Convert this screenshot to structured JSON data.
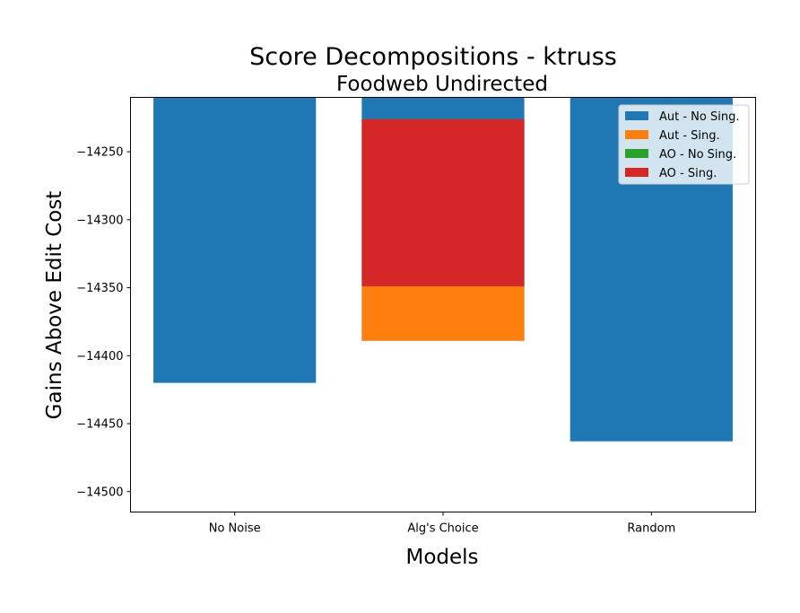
{
  "chart_data": {
    "type": "bar",
    "stacked": true,
    "title": "Score Decompositions - ktruss",
    "subtitle": "Foodweb Undirected",
    "xlabel": "Models",
    "ylabel": "Gains Above Edit Cost",
    "categories": [
      "No Noise",
      "Alg's Choice",
      "Random"
    ],
    "ylim": [
      -14515,
      -14210
    ],
    "yticks": [
      -14250,
      -14300,
      -14350,
      -14400,
      -14450,
      -14500
    ],
    "ytick_labels": [
      "−14250",
      "−14300",
      "−14350",
      "−14400",
      "−14450",
      "−14500"
    ],
    "legend_position": "top-right",
    "series": [
      {
        "name": "Aut - No Sing.",
        "color": "#1f77b4",
        "bottoms": [
          0,
          0,
          0
        ],
        "tops": [
          -14420,
          -14389,
          -14463
        ]
      },
      {
        "name": "Aut - Sing.",
        "color": "#ff7f0e",
        "bottoms": [
          -14420,
          -14389,
          -14463
        ],
        "tops": [
          -14420,
          -14349,
          -14463
        ]
      },
      {
        "name": "AO - No Sing.",
        "color": "#2ca02c",
        "bottoms": [
          -14420,
          -14349,
          -14463
        ],
        "tops": [
          -14420,
          -14349,
          -14463
        ]
      },
      {
        "name": "AO - Sing.",
        "color": "#d62728",
        "bottoms": [
          -14420,
          -14349,
          -14463
        ],
        "tops": [
          -14420,
          -14226,
          -14463
        ]
      }
    ]
  }
}
